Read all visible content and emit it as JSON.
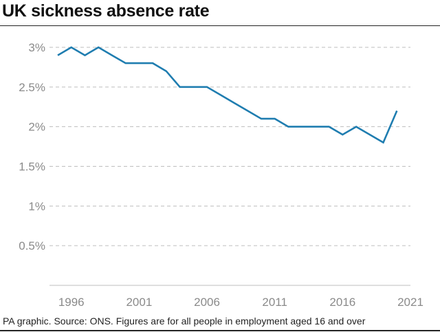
{
  "title": "UK sickness absence rate",
  "source": "PA graphic. Source: ONS. Figures are for all people in employment aged 16 and over",
  "colors": {
    "line": "#1f7db0",
    "grid": "#bdbdbd",
    "tick_text": "#8a8a8a",
    "rule": "#222222"
  },
  "chart_data": {
    "type": "line",
    "title": "UK sickness absence rate",
    "xlabel": "",
    "ylabel": "",
    "x": [
      1995,
      1996,
      1997,
      1998,
      1999,
      2000,
      2001,
      2002,
      2003,
      2004,
      2005,
      2006,
      2007,
      2008,
      2009,
      2010,
      2011,
      2012,
      2013,
      2014,
      2015,
      2016,
      2017,
      2018,
      2019,
      2020
    ],
    "series": [
      {
        "values": [
          2.9,
          3.0,
          2.9,
          3.0,
          2.9,
          2.8,
          2.8,
          2.8,
          2.7,
          2.5,
          2.5,
          2.5,
          2.4,
          2.3,
          2.2,
          2.1,
          2.1,
          2.0,
          2.0,
          2.0,
          2.0,
          1.9,
          2.0,
          1.9,
          1.8,
          2.2
        ]
      }
    ],
    "xlim": [
      1995,
      2021
    ],
    "ylim": [
      0,
      3
    ],
    "yticks": [
      0.5,
      1,
      1.5,
      2,
      2.5,
      3
    ],
    "ytick_labels": [
      "0.5%",
      "1%",
      "1.5%",
      "2%",
      "2.5%",
      "3%"
    ],
    "xticks": [
      1996,
      2001,
      2006,
      2011,
      2016,
      2021
    ],
    "xtick_labels": [
      "1996",
      "2001",
      "2006",
      "2011",
      "2016",
      "2021"
    ],
    "grid": true,
    "legend": false
  }
}
